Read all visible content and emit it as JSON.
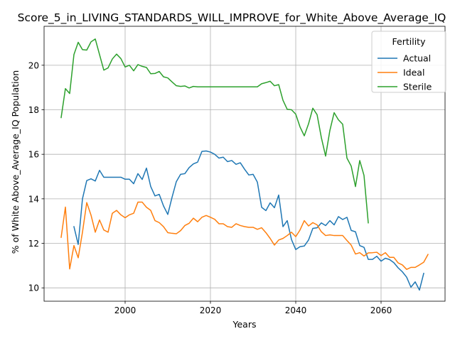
{
  "chart_data": {
    "type": "line",
    "title": "Score_5_in_LIVING_STANDARDS_WILL_IMPROVE_for_White_Above_Average_IQ",
    "xlabel": "Years",
    "ylabel": "% of White Above_Average_IQ Population",
    "xlim": [
      1981,
      2075
    ],
    "ylim": [
      9.4,
      21.75
    ],
    "xticks": [
      2000,
      2020,
      2040,
      2060
    ],
    "yticks": [
      10,
      12,
      14,
      16,
      18,
      20
    ],
    "grid": true,
    "legend": {
      "title": "Fertility",
      "position": "top-right"
    },
    "series": [
      {
        "name": "Actual",
        "color": "#1f77b4",
        "start_year": 1988,
        "values": [
          12.75,
          11.95,
          14.0,
          14.82,
          14.9,
          14.8,
          15.28,
          14.97,
          14.97,
          14.97,
          14.97,
          14.97,
          14.88,
          14.88,
          14.68,
          15.13,
          14.87,
          15.38,
          14.55,
          14.13,
          14.2,
          13.68,
          13.3,
          14.07,
          14.77,
          15.1,
          15.13,
          15.4,
          15.57,
          15.65,
          16.13,
          16.15,
          16.1,
          16.0,
          15.83,
          15.87,
          15.67,
          15.72,
          15.55,
          15.62,
          15.33,
          15.07,
          15.1,
          14.75,
          13.62,
          13.47,
          13.82,
          13.6,
          14.17,
          12.75,
          13.02,
          12.17,
          11.72,
          11.85,
          11.88,
          12.15,
          12.67,
          12.7,
          12.92,
          12.8,
          13.02,
          12.83,
          13.2,
          13.07,
          13.17,
          12.58,
          12.52,
          11.9,
          11.82,
          11.28,
          11.28,
          11.42,
          11.2,
          11.33,
          11.27,
          11.13,
          10.9,
          10.72,
          10.48,
          10.03,
          10.27,
          9.9,
          10.65
        ]
      },
      {
        "name": "Ideal",
        "color": "#ff7f0e",
        "start_year": 1985,
        "values": [
          12.27,
          13.63,
          10.85,
          11.9,
          11.35,
          12.5,
          13.83,
          13.27,
          12.5,
          13.05,
          12.6,
          12.5,
          13.35,
          13.48,
          13.28,
          13.15,
          13.28,
          13.35,
          13.85,
          13.85,
          13.62,
          13.48,
          13.02,
          12.93,
          12.75,
          12.48,
          12.45,
          12.43,
          12.57,
          12.8,
          12.9,
          13.13,
          12.97,
          13.17,
          13.25,
          13.17,
          13.08,
          12.88,
          12.88,
          12.75,
          12.72,
          12.88,
          12.8,
          12.75,
          12.72,
          12.72,
          12.63,
          12.7,
          12.48,
          12.22,
          11.92,
          12.15,
          12.22,
          12.35,
          12.5,
          12.3,
          12.6,
          13.02,
          12.78,
          12.93,
          12.83,
          12.52,
          12.35,
          12.38,
          12.35,
          12.35,
          12.35,
          12.13,
          11.92,
          11.52,
          11.58,
          11.43,
          11.57,
          11.58,
          11.6,
          11.45,
          11.58,
          11.37,
          11.37,
          11.12,
          11.03,
          10.83,
          10.92,
          10.92,
          11.03,
          11.15,
          11.5
        ]
      },
      {
        "name": "Sterile",
        "color": "#2ca02c",
        "start_year": 1985,
        "values": [
          17.65,
          18.95,
          18.73,
          20.48,
          21.03,
          20.7,
          20.68,
          21.05,
          21.18,
          20.48,
          19.78,
          19.88,
          20.28,
          20.5,
          20.3,
          19.92,
          20.0,
          19.75,
          20.03,
          19.95,
          19.9,
          19.62,
          19.63,
          19.72,
          19.48,
          19.43,
          19.25,
          19.08,
          19.05,
          19.07,
          18.98,
          19.05,
          19.03,
          19.03,
          19.03,
          19.03,
          19.03,
          19.03,
          19.03,
          19.03,
          19.03,
          19.03,
          19.03,
          19.03,
          19.03,
          19.03,
          19.03,
          19.17,
          19.22,
          19.28,
          19.08,
          19.13,
          18.43,
          18.02,
          18.0,
          17.8,
          17.23,
          16.83,
          17.37,
          18.07,
          17.78,
          16.75,
          15.92,
          17.07,
          17.87,
          17.55,
          17.35,
          15.83,
          15.47,
          14.55,
          15.72,
          15.05,
          12.92
        ]
      }
    ]
  }
}
